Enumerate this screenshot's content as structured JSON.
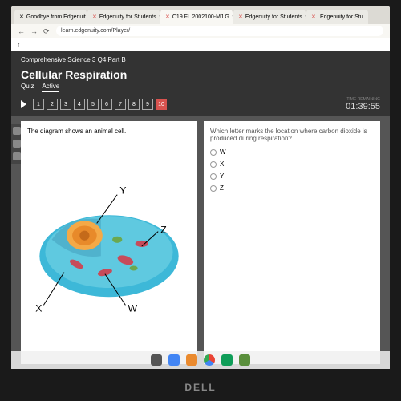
{
  "browser": {
    "tabs": [
      {
        "label": "Goodbye from Edgenuit",
        "active": false
      },
      {
        "label": "Edgenuity for Students",
        "active": false
      },
      {
        "label": "C19 FL 2002100-MJ G",
        "active": true
      },
      {
        "label": "Edgenuity for Students",
        "active": false
      },
      {
        "label": "Edgenuity for Stu",
        "active": false
      }
    ],
    "url": "learn.edgenuity.com/Player/",
    "page_title": "t"
  },
  "quiz": {
    "breadcrumb": "Comprehensive Science 3 Q4 Part B",
    "title": "Cellular Respiration",
    "tab_quiz": "Quiz",
    "tab_active": "Active",
    "questions": [
      "1",
      "2",
      "3",
      "4",
      "5",
      "6",
      "7",
      "8",
      "9",
      "10"
    ],
    "current_q": 10,
    "timer_label": "TIME REMAINING",
    "timer": "01:39:55"
  },
  "left_panel": {
    "text": "The diagram shows an animal cell.",
    "labels": {
      "W": "W",
      "X": "X",
      "Y": "Y",
      "Z": "Z"
    },
    "cell_colors": {
      "membrane": "#3db8d8",
      "cytoplasm": "#5fc9e0",
      "nucleus_outer": "#f4a947",
      "nucleus_inner": "#e88a2a",
      "nucleolus": "#c46a1a",
      "mitochondria": "#c74b5a",
      "organelle_green": "#6ba84f"
    }
  },
  "right_panel": {
    "question": "Which letter marks the location where carbon dioxide is produced during respiration?",
    "options": [
      "W",
      "X",
      "Y",
      "Z"
    ]
  },
  "taskbar_colors": [
    "#555",
    "#4285f4",
    "#ea8a2e",
    "#fff",
    "#0f9d58",
    "#5a8f3c"
  ],
  "brand": "DELL"
}
